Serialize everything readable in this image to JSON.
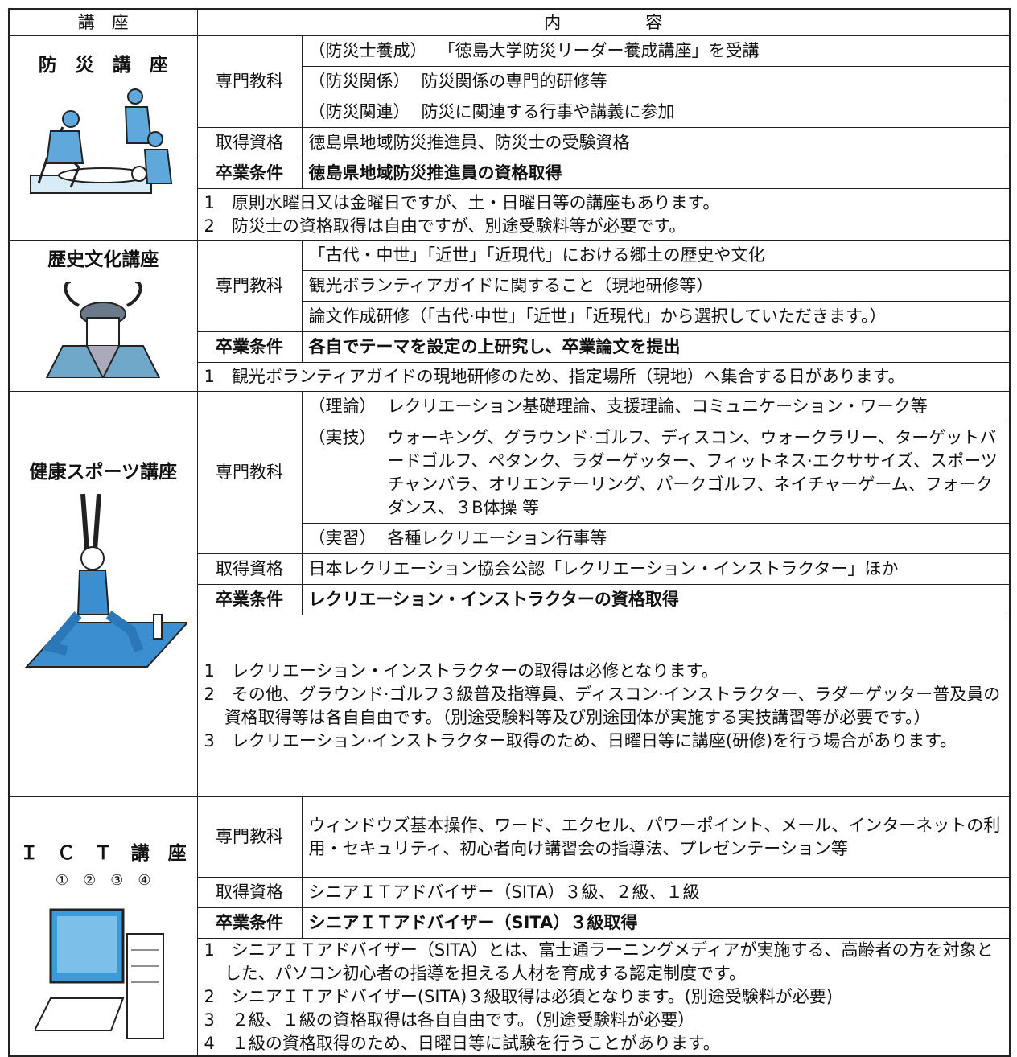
{
  "header": [
    "講　座",
    "内　　　　　容"
  ],
  "courses": [
    {
      "name": "防　災　講　座",
      "specialty": {
        "label": "専門教科",
        "items": [
          {
            "prefix": "（防災士養成）",
            "text": "「徳島大学防災リーダー養成講座」を受講"
          },
          {
            "prefix": "（防災関係）",
            "text": "防災関係の専門的研修等"
          },
          {
            "prefix": "（防災関連）",
            "text": "防災に関連する行事や講義に参加"
          }
        ]
      },
      "qualification": {
        "label": "取得資格",
        "text": "徳島県地域防災推進員、防災士の受験資格"
      },
      "graduation": {
        "label": "卒業条件",
        "text": "徳島県地域防災推進員の資格取得"
      },
      "notes": [
        "1　原則水曜日又は金曜日ですが、土・日曜日等の講座もあります。",
        "2　防災士の資格取得は自由ですが、別途受験料等が必要です。"
      ]
    },
    {
      "name": "歴史文化講座",
      "specialty": {
        "label": "専門教科",
        "items": [
          {
            "text": "「古代・中世」「近世」「近現代」における郷土の歴史や文化"
          },
          {
            "text": "観光ボランティアガイドに関すること（現地研修等）"
          },
          {
            "text": "論文作成研修（「古代·中世」「近世」「近現代」から選択していただきます。）"
          }
        ]
      },
      "graduation": {
        "label": "卒業条件",
        "text": "各自でテーマを設定の上研究し、卒業論文を提出"
      },
      "notes": [
        "1　観光ボランティアガイドの現地研修のため、指定場所（現地）へ集合する日があります。"
      ]
    },
    {
      "name": "健康スポーツ講座",
      "specialty": {
        "label": "専門教科",
        "items": [
          {
            "prefix": "（理論）",
            "text": "レクリエーション基礎理論、支援理論、コミュニケーション・ワーク等"
          },
          {
            "prefix": "（実技）",
            "text": "ウォーキング、グラウンド·ゴルフ、ディスコン、ウォークラリー、ターゲットバードゴルフ、ペタンク、ラダーゲッター、フィットネス·エクササイズ、スポーツチャンバラ、オリエンテーリング、パークゴルフ、ネイチャーゲーム、フォークダンス、３B体操 等"
          },
          {
            "prefix": "（実習）",
            "text": "各種レクリエーション行事等"
          }
        ]
      },
      "qualification": {
        "label": "取得資格",
        "text": "日本レクリエーション協会公認「レクリエーション・インストラクター」ほか"
      },
      "graduation": {
        "label": "卒業条件",
        "text": "レクリエーション・インストラクターの資格取得"
      },
      "notes": [
        "1　レクリエーション・インストラクターの取得は必修となります。",
        "2　その他、グラウンド·ゴルフ３級普及指導員、ディスコン·インストラクター、ラダーゲッター普及員の資格取得等は各自自由です。（別途受験料等及び別途団体が実施する実技講習等が必要です。）",
        "3　レクリエーション·インストラクター取得のため、日曜日等に講座(研修)を行う場合があります。"
      ]
    },
    {
      "name": "Ｉ　Ｃ　Ｔ　講　座",
      "subtitle": "①　②　③　④",
      "specialty": {
        "label": "専門教科",
        "items": [
          {
            "text": "ウィンドウズ基本操作、ワード、エクセル、パワーポイント、メール、インターネットの利用・セキュリティ、初心者向け講習会の指導法、プレゼンテーション等"
          }
        ]
      },
      "qualification": {
        "label": "取得資格",
        "text": "シニアＩＴアドバイザー（SITA）３級、２級、１級"
      },
      "graduation": {
        "label": "卒業条件",
        "text": "シニアＩＴアドバイザー（SITA）３級取得"
      },
      "notes": [
        "1　シニアＩＴアドバイザー（SITA）とは、富士通ラーニングメディアが実施する、高齢者の方を対象とした、パソコン初心者の指導を担える人材を育成する認定制度です。",
        "2　シニアＩＴアドバイザー(SITA)３級取得は必須となります。(別途受験料が必要)",
        "3　２級、１級の資格取得は各自自由です。（別途受験料が必要）",
        "4　１級の資格取得のため、日曜日等に試験を行うことがあります。"
      ]
    }
  ]
}
